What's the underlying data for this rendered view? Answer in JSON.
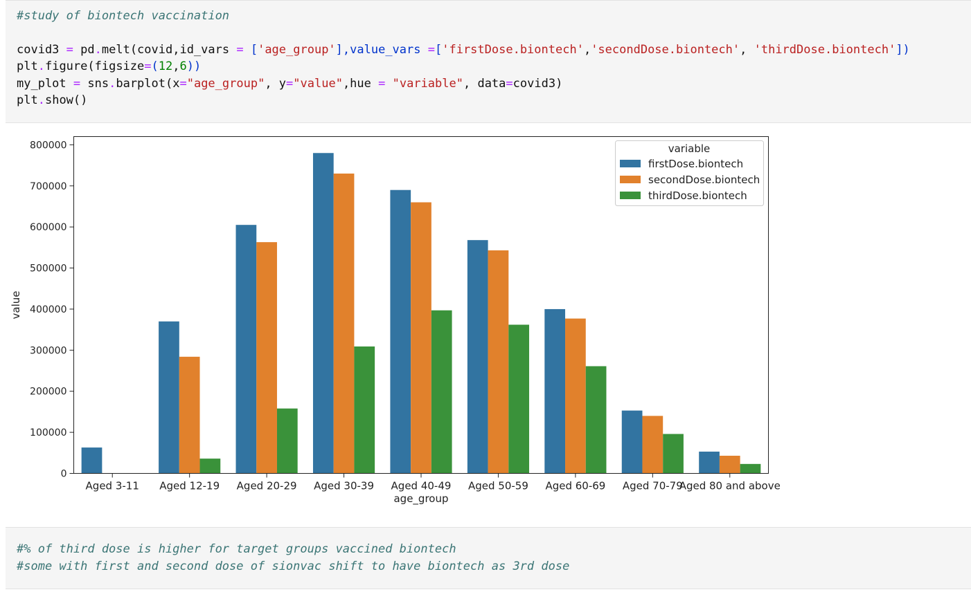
{
  "code_cell": {
    "comment": "#study of biontech vaccination",
    "line2": {
      "p1": "covid3 ",
      "eq1": "=",
      "p2": " pd",
      "dot1": ".",
      "p3": "melt(covid,id_vars ",
      "eq2": "=",
      "p4": " [",
      "s1": "'age_group'",
      "p5": "],value_vars ",
      "eq3": "=",
      "p6": "[",
      "s2": "'firstDose.biontech'",
      "p7": ",",
      "s3": "'secondDose.biontech'",
      "p8": ", ",
      "s4": "'thirdDose.biontech'",
      "p9": "])"
    },
    "line3": {
      "p1": "plt",
      "dot1": ".",
      "p2": "figure(figsize",
      "eq1": "=",
      "p3": "(",
      "n1": "12",
      "p4": ",",
      "n2": "6",
      "p5": "))"
    },
    "line4": {
      "p1": "my_plot ",
      "eq1": "=",
      "p2": " sns",
      "dot1": ".",
      "p3": "barplot(x",
      "eq2": "=",
      "s1": "\"age_group\"",
      "p4": ", y",
      "eq3": "=",
      "s2": "\"value\"",
      "p5": ",hue ",
      "eq4": "=",
      "p6": " ",
      "s3": "\"variable\"",
      "p7": ", data",
      "eq5": "=",
      "p8": "covid3)"
    },
    "line5": {
      "p1": "plt",
      "dot1": ".",
      "p2": "show()"
    }
  },
  "markdown_cell": {
    "line1": "#% of third dose is higher for target groups vaccined biontech",
    "line2": "#some with first and second dose of sionvac shift to have biontech as 3rd dose"
  },
  "chart_data": {
    "type": "bar",
    "xlabel": "age_group",
    "ylabel": "value",
    "ylim": [
      0,
      820000
    ],
    "yticks": [
      0,
      100000,
      200000,
      300000,
      400000,
      500000,
      600000,
      700000,
      800000
    ],
    "ytick_labels": [
      "0",
      "100000",
      "200000",
      "300000",
      "400000",
      "500000",
      "600000",
      "700000",
      "800000"
    ],
    "grid": false,
    "legend_title": "variable",
    "legend_position": "top-right",
    "categories": [
      "Aged 3-11",
      "Aged 12-19",
      "Aged 20-29",
      "Aged 30-39",
      "Aged 40-49",
      "Aged 50-59",
      "Aged 60-69",
      "Aged 70-79",
      "Aged 80 and above"
    ],
    "series": [
      {
        "name": "firstDose.biontech",
        "color": "#3274a1",
        "values": [
          63000,
          370000,
          605000,
          780000,
          690000,
          568000,
          400000,
          153000,
          53000
        ]
      },
      {
        "name": "secondDose.biontech",
        "color": "#e1812c",
        "values": [
          0,
          284000,
          563000,
          730000,
          660000,
          543000,
          377000,
          140000,
          43000
        ]
      },
      {
        "name": "thirdDose.biontech",
        "color": "#3a923a",
        "values": [
          0,
          36000,
          158000,
          309000,
          397000,
          362000,
          261000,
          96000,
          23000
        ]
      }
    ]
  }
}
